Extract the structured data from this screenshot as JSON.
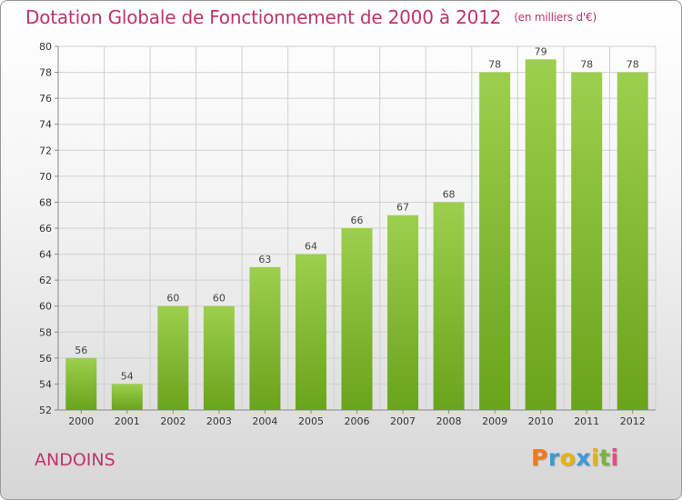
{
  "header": {
    "title": "Dotation Globale de Fonctionnement de 2000 à 2012",
    "subtitle": "(en milliers d'€)"
  },
  "footer": {
    "commune": "ANDOINS",
    "logo": "Proxiti",
    "logo_colors": [
      "#f07a1a",
      "#3a9ad9",
      "#e8b400",
      "#3a9ad9",
      "#e8b400",
      "#7ab53a",
      "#e84a8a"
    ]
  },
  "chart_data": {
    "type": "bar",
    "categories": [
      "2000",
      "2001",
      "2002",
      "2003",
      "2004",
      "2005",
      "2006",
      "2007",
      "2008",
      "2009",
      "2010",
      "2011",
      "2012"
    ],
    "values": [
      56,
      54,
      60,
      60,
      63,
      64,
      66,
      67,
      68,
      78,
      79,
      78,
      78
    ],
    "ylim": [
      52,
      80
    ],
    "yticks": [
      52,
      54,
      56,
      58,
      60,
      62,
      64,
      66,
      68,
      70,
      72,
      74,
      76,
      78,
      80
    ],
    "grid": true,
    "bar_color_top": "#9ccf4d",
    "bar_color_bottom": "#6aa31c"
  }
}
